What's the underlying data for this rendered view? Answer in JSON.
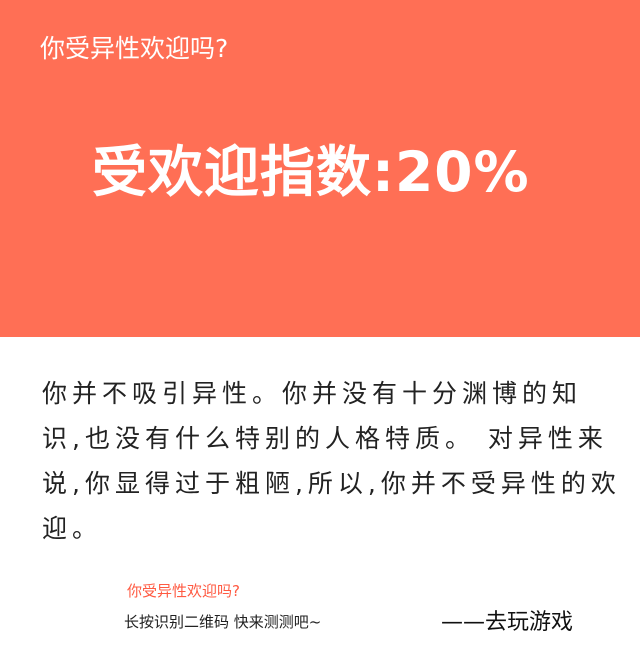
{
  "header": {
    "title": "你受异性欢迎吗?"
  },
  "result": {
    "score_text": "受欢迎指数:20%",
    "description": "你并不吸引异性。你并没有十分渊博的知识,也没有什么特别的人格特质。 对异性来说,你显得过于粗陋,所以,你并不受异性的欢迎。"
  },
  "footer": {
    "quiz_title": "你受异性欢迎吗?",
    "cta_text": "长按识别二维码  快来测测吧~",
    "play_link": "——去玩游戏"
  },
  "colors": {
    "banner_background": "#ff6f55",
    "accent_text": "#ff5a42"
  }
}
